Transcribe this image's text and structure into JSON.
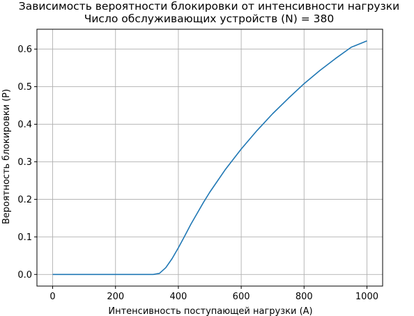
{
  "chart_data": {
    "type": "line",
    "title": "Зависимость вероятности блокировки от интенсивности нагрузки",
    "subtitle": "Число обслуживающих устройств (N) = 380",
    "xlabel": "Интенсивность поступающей нагрузки (A)",
    "ylabel": "Вероятность блокировки (P)",
    "xlim": [
      -50,
      1050
    ],
    "ylim": [
      -0.031,
      0.653
    ],
    "xticks": [
      0,
      200,
      400,
      600,
      800,
      1000
    ],
    "xtick_labels": [
      "0",
      "200",
      "400",
      "600",
      "800",
      "1000"
    ],
    "yticks": [
      0.0,
      0.1,
      0.2,
      0.3,
      0.4,
      0.5,
      0.6
    ],
    "ytick_labels": [
      "0.0",
      "0.1",
      "0.2",
      "0.3",
      "0.4",
      "0.5",
      "0.6"
    ],
    "grid": true,
    "series": [
      {
        "color": "#1f77b4",
        "x": [
          0,
          100,
          200,
          300,
          320,
          340,
          360,
          380,
          400,
          420,
          440,
          460,
          480,
          500,
          550,
          600,
          650,
          700,
          750,
          800,
          850,
          900,
          950,
          1000
        ],
        "y": [
          0,
          0,
          0,
          0,
          0.0,
          0.003,
          0.018,
          0.042,
          0.071,
          0.102,
          0.134,
          0.163,
          0.192,
          0.219,
          0.28,
          0.334,
          0.383,
          0.428,
          0.469,
          0.508,
          0.543,
          0.575,
          0.605,
          0.622
        ]
      }
    ]
  }
}
